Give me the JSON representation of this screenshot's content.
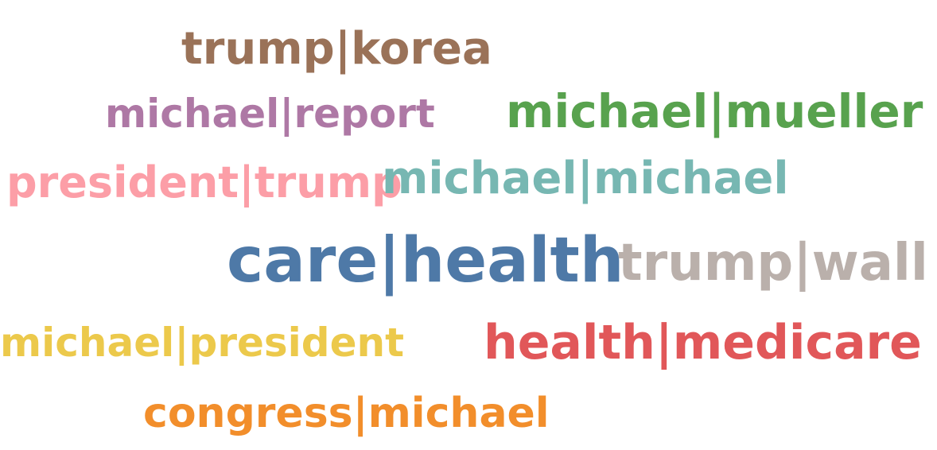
{
  "words": {
    "trump_korea": {
      "text": "trump|korea",
      "color": "#9a7258"
    },
    "michael_report": {
      "text": "michael|report",
      "color": "#ae78a5"
    },
    "michael_mueller": {
      "text": "michael|mueller",
      "color": "#58a24e"
    },
    "president_trump": {
      "text": "president|trump",
      "color": "#fc9ea7"
    },
    "michael_michael": {
      "text": "michael|michael",
      "color": "#77b7b2"
    },
    "care_health": {
      "text": "care|health",
      "color": "#4e79a7"
    },
    "trump_wall": {
      "text": "trump|wall",
      "color": "#bab0ab"
    },
    "michael_president": {
      "text": "michael|president",
      "color": "#ecc94b"
    },
    "health_medicare": {
      "text": "health|medicare",
      "color": "#e15759"
    },
    "congress_michael": {
      "text": "congress|michael",
      "color": "#f28e2b"
    }
  }
}
